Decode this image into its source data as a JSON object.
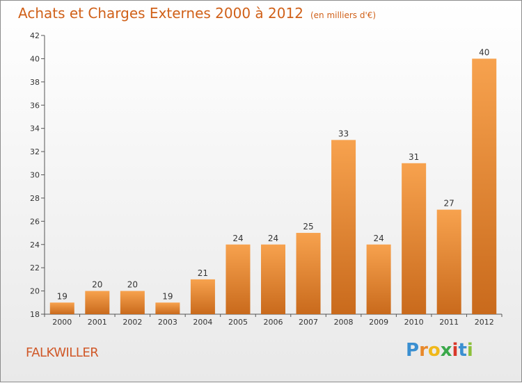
{
  "chart_data": {
    "type": "bar",
    "title": "Achats et Charges Externes 2000 à 2012",
    "subtitle": "(en milliers d'€)",
    "categories": [
      "2000",
      "2001",
      "2002",
      "2003",
      "2004",
      "2005",
      "2006",
      "2007",
      "2008",
      "2009",
      "2010",
      "2011",
      "2012"
    ],
    "values": [
      19,
      20,
      20,
      19,
      21,
      24,
      24,
      25,
      33,
      24,
      31,
      27,
      40
    ],
    "ylim": [
      18,
      42
    ],
    "yticks": [
      18,
      20,
      22,
      24,
      26,
      28,
      30,
      32,
      34,
      36,
      38,
      40,
      42
    ],
    "xlabel": "",
    "ylabel": "",
    "grid": false,
    "bar_color_top": "#f7a24e",
    "bar_color_bottom": "#c96a1c"
  },
  "location_label": "FALKWILLER",
  "logo": {
    "letters": [
      "P",
      "r",
      "o",
      "x",
      "i",
      "t",
      "i"
    ],
    "colors": [
      "#3a8fd1",
      "#e8882a",
      "#f0b81a",
      "#3aa84a",
      "#d8382a",
      "#3a8fd1",
      "#8cc03a"
    ]
  }
}
